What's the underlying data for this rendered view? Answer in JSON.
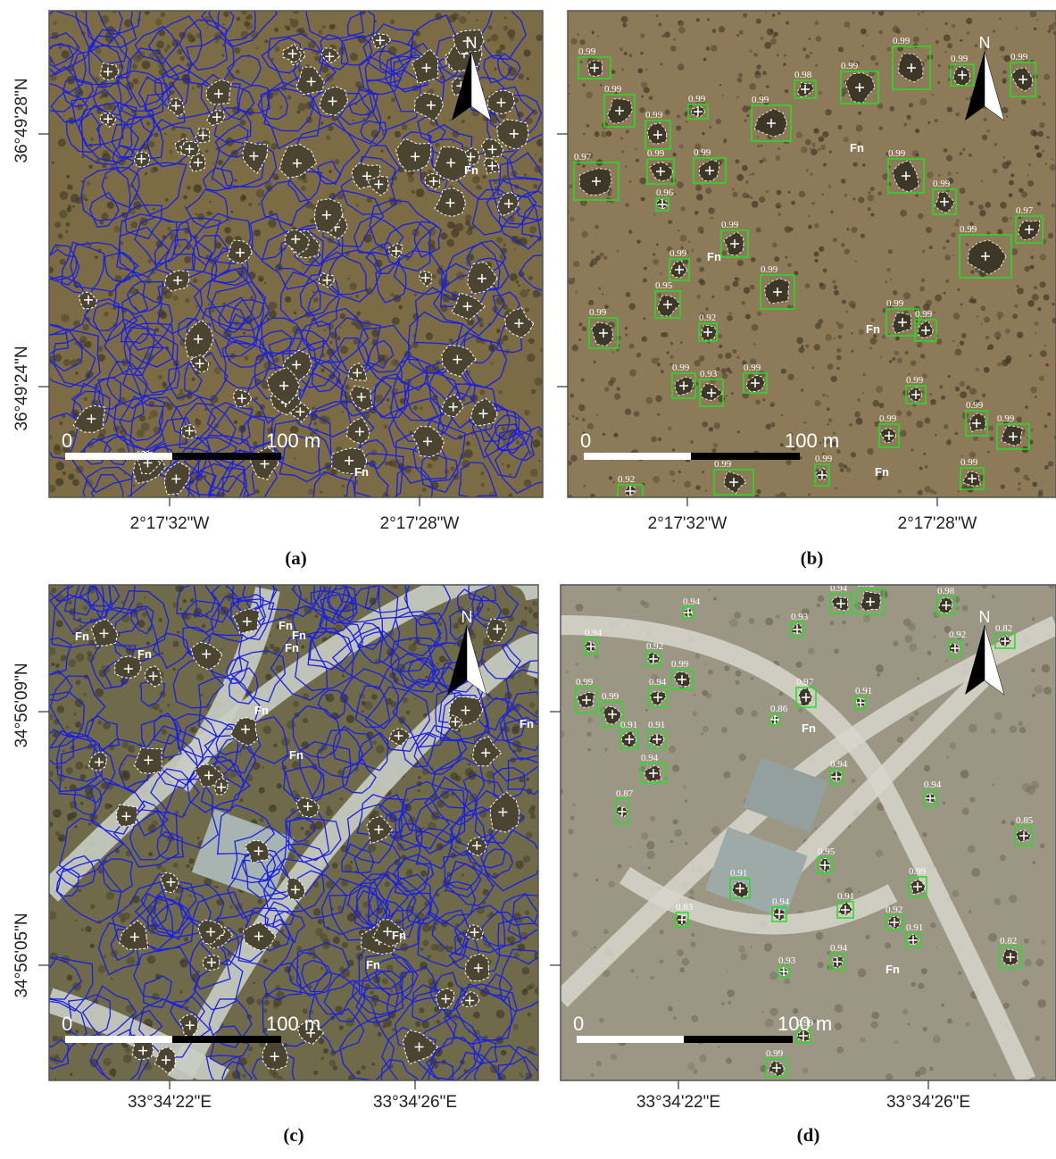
{
  "panels": [
    {
      "caption": "(a)",
      "lat_labels": [
        "36°49'28\"N",
        "36°49'24\"N"
      ],
      "lon_labels": [
        "2°17'32\"W",
        "2°17'28\"W"
      ],
      "scale_labels": [
        "0",
        "100 m"
      ],
      "north": "N",
      "fn_labels": [
        "Fn",
        "Fn"
      ]
    },
    {
      "caption": "(b)",
      "lon_labels": [
        "2°17'32\"W",
        "2°17'28\"W"
      ],
      "scale_labels": [
        "0",
        "100 m"
      ],
      "north": "N",
      "fn_labels": [
        "Fn",
        "Fn",
        "Fn",
        "Fn"
      ],
      "detections": [
        "0.99",
        "0.99",
        "0.97",
        "0.99",
        "0.99",
        "0.96",
        "0.99",
        "0.99",
        "0.99",
        "0.98",
        "0.99",
        "0.99",
        "0.99",
        "0.99",
        "0.99",
        "0.99",
        "0.97",
        "0.99",
        "0.99",
        "0.99",
        "0.99",
        "0.95",
        "0.99",
        "0.92",
        "0.99",
        "0.99",
        "0.99",
        "0.93",
        "0.99",
        "0.99",
        "0.99",
        "0.99",
        "0.99",
        "0.99",
        "0.92",
        "0.99",
        "0.99"
      ]
    },
    {
      "caption": "(c)",
      "lat_labels": [
        "34°56'09\"N",
        "34°56'05\"N"
      ],
      "lon_labels": [
        "33°34'22\"E",
        "33°34'26\"E"
      ],
      "scale_labels": [
        "0",
        "100 m"
      ],
      "north": "N",
      "fn_labels": [
        "Fn",
        "Fn",
        "Fn",
        "Fn",
        "Fn",
        "Fn",
        "Fn",
        "Fn",
        "Fn",
        "Fn"
      ]
    },
    {
      "caption": "(d)",
      "lon_labels": [
        "33°34'22\"E",
        "33°34'26\"E"
      ],
      "scale_labels": [
        "0",
        "100 m"
      ],
      "north": "N",
      "fn_labels": [
        "Fn",
        "Fn"
      ],
      "detections": [
        "0.94",
        "0.99",
        "0.99",
        "0.91",
        "0.91",
        "0.94",
        "0.87",
        "0.92",
        "0.94",
        "0.99",
        "0.94",
        "0.86",
        "0.97",
        "0.94",
        "0.92",
        "0.91",
        "0.93",
        "0.94",
        "0.98",
        "0.92",
        "0.82",
        "0.94",
        "0.85",
        "0.95",
        "0.99",
        "0.91",
        "0.91",
        "0.94",
        "0.83",
        "0.92",
        "0.91",
        "0.94",
        "0.82",
        "0.93",
        "0.99",
        "0.99"
      ]
    }
  ]
}
